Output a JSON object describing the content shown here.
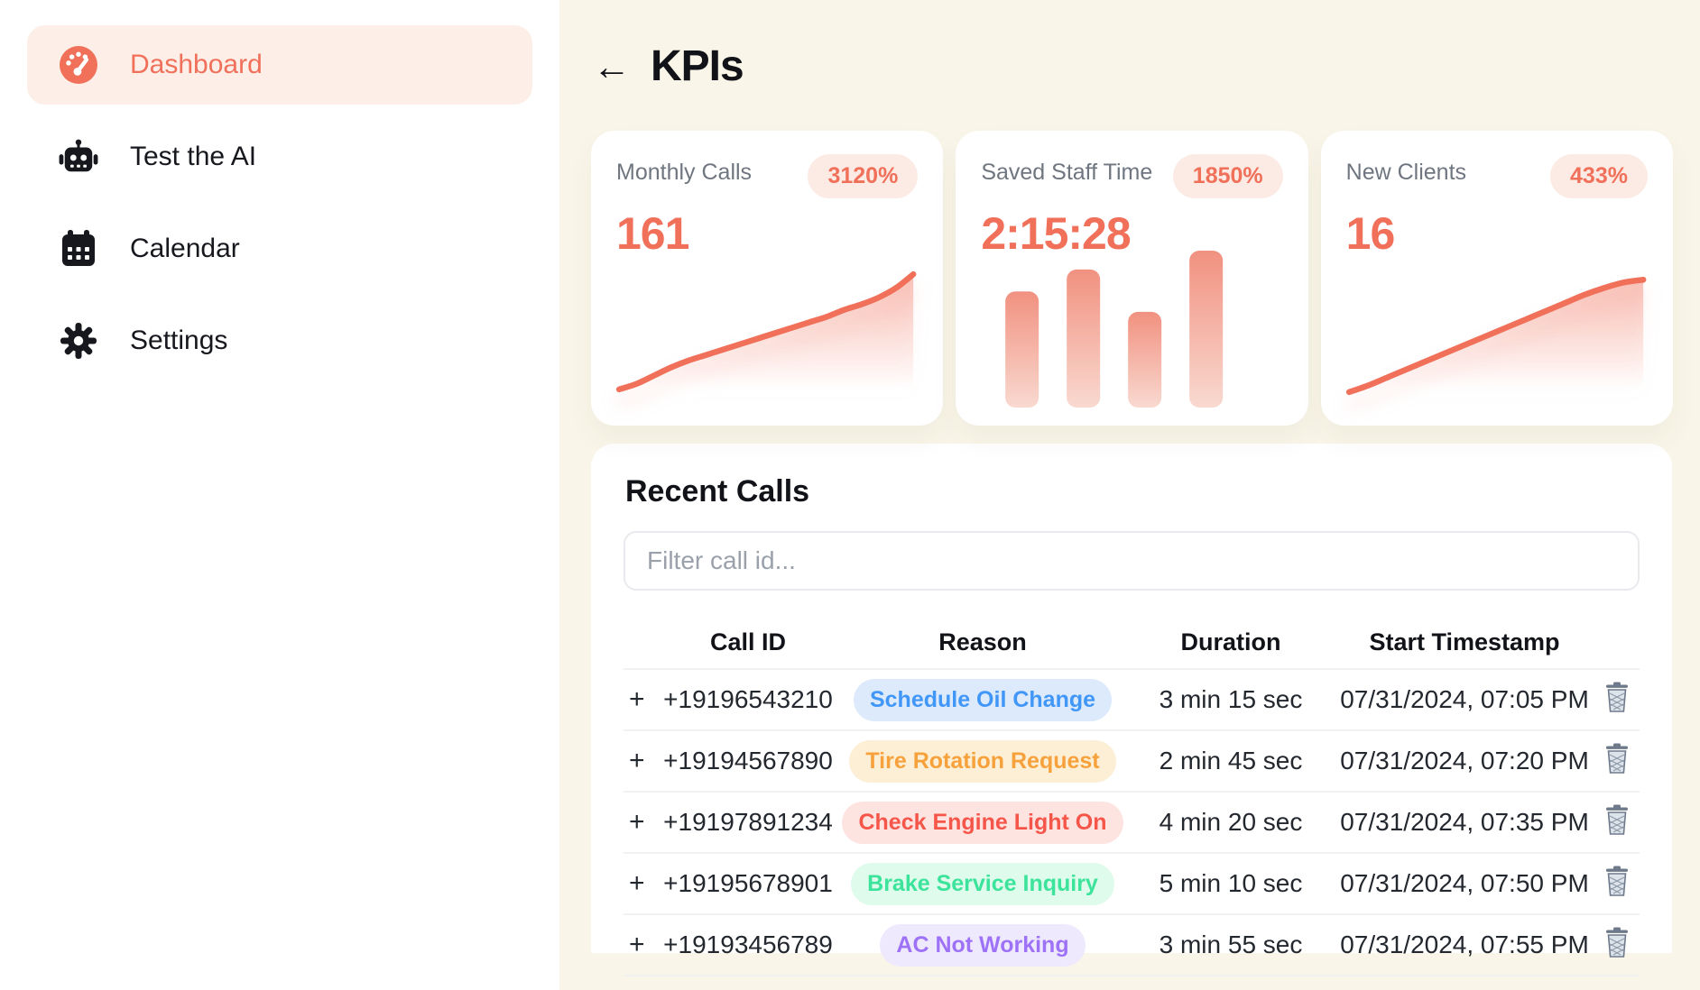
{
  "sidebar": {
    "items": [
      {
        "label": "Dashboard",
        "icon": "gauge-icon",
        "active": true
      },
      {
        "label": "Test the AI",
        "icon": "robot-icon",
        "active": false
      },
      {
        "label": "Calendar",
        "icon": "calendar-icon",
        "active": false
      },
      {
        "label": "Settings",
        "icon": "gear-icon",
        "active": false
      }
    ]
  },
  "header": {
    "back_arrow": "←",
    "title": "KPIs"
  },
  "kpi_cards": [
    {
      "label": "Monthly Calls",
      "badge": "3120%",
      "value": "161",
      "chart": {
        "type": "area",
        "values": [
          8,
          12,
          18,
          24,
          29,
          33,
          37,
          41,
          45,
          49,
          53,
          57,
          61,
          66,
          70,
          75,
          82,
          92
        ]
      }
    },
    {
      "label": "Saved Staff Time",
      "badge": "1850%",
      "value": "2:15:28",
      "chart": {
        "type": "bar",
        "values": [
          74,
          88,
          61,
          100
        ]
      }
    },
    {
      "label": "New Clients",
      "badge": "433%",
      "value": "16",
      "chart": {
        "type": "area",
        "values": [
          6,
          11,
          17,
          23,
          29,
          35,
          41,
          47,
          53,
          59,
          65,
          71,
          77,
          82,
          86,
          88
        ]
      }
    }
  ],
  "recent_calls": {
    "title": "Recent Calls",
    "filter_placeholder": "Filter call id...",
    "columns": {
      "call_id": "Call ID",
      "reason": "Reason",
      "duration": "Duration",
      "timestamp": "Start Timestamp"
    },
    "rows": [
      {
        "expand": "+",
        "call_id": "+19196543210",
        "reason": "Schedule Oil Change",
        "reason_color": "blue",
        "duration": "3 min 15 sec",
        "timestamp": "07/31/2024, 07:05 PM"
      },
      {
        "expand": "+",
        "call_id": "+19194567890",
        "reason": "Tire Rotation Request",
        "reason_color": "orange",
        "duration": "2 min 45 sec",
        "timestamp": "07/31/2024, 07:20 PM"
      },
      {
        "expand": "+",
        "call_id": "+19197891234",
        "reason": "Check Engine Light On",
        "reason_color": "red",
        "duration": "4 min 20 sec",
        "timestamp": "07/31/2024, 07:35 PM"
      },
      {
        "expand": "+",
        "call_id": "+19195678901",
        "reason": "Brake Service Inquiry",
        "reason_color": "green",
        "duration": "5 min 10 sec",
        "timestamp": "07/31/2024, 07:50 PM"
      },
      {
        "expand": "+",
        "call_id": "+19193456789",
        "reason": "AC Not Working",
        "reason_color": "purple",
        "duration": "3 min 55 sec",
        "timestamp": "07/31/2024, 07:55 PM"
      }
    ]
  },
  "colors": {
    "accent": "#f0705a",
    "accent_badge_bg": "#fcebe4",
    "active_nav_bg": "#fdeee8",
    "main_bg": "#f9f6e9",
    "card_bg": "#ffffff",
    "chart_line": "#f0705a",
    "chart_fill_top": "rgba(240,112,90,0.45)",
    "bar_top": "#f19180",
    "bar_bottom": "#f9d9d0",
    "badges": {
      "blue": {
        "text": "#4197f7",
        "bg": "#dceafc"
      },
      "orange": {
        "text": "#f6a13b",
        "bg": "#fcefd6"
      },
      "red": {
        "text": "#f6564a",
        "bg": "#fde4e1"
      },
      "green": {
        "text": "#3ce39b",
        "bg": "#defbec"
      },
      "purple": {
        "text": "#9e72f7",
        "bg": "#efe9fd"
      }
    }
  }
}
